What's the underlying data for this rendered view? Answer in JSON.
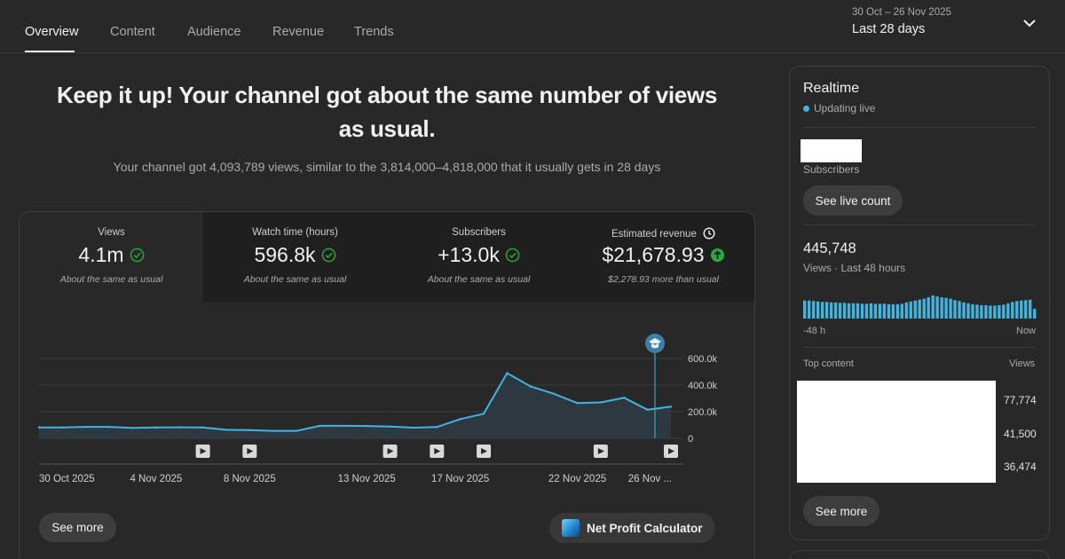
{
  "tabs": [
    {
      "label": "Overview",
      "active": true
    },
    {
      "label": "Content",
      "active": false
    },
    {
      "label": "Audience",
      "active": false
    },
    {
      "label": "Revenue",
      "active": false
    },
    {
      "label": "Trends",
      "active": false
    }
  ],
  "date_range": {
    "range": "30 Oct – 26 Nov 2025",
    "period": "Last 28 days"
  },
  "headline": {
    "line1": "Keep it up! Your channel got about the same number of views",
    "line2": "as usual.",
    "subline": "Your channel got 4,093,789 views, similar to the 3,814,000–4,818,000 that it usually gets in 28 days"
  },
  "metrics": [
    {
      "label": "Views",
      "value": "4.1m",
      "note": "About the same as usual",
      "status": "check"
    },
    {
      "label": "Watch time (hours)",
      "value": "596.8k",
      "note": "About the same as usual",
      "status": "check"
    },
    {
      "label": "Subscribers",
      "value": "+13.0k",
      "note": "About the same as usual",
      "status": "check"
    },
    {
      "label": "Estimated revenue",
      "value": "$21,678.93",
      "note": "$2,278.93 more than usual",
      "status": "up"
    }
  ],
  "chart_data": {
    "type": "area",
    "series": [
      {
        "values": [
          82000,
          82000,
          86000,
          86000,
          78000,
          82000,
          83000,
          82000,
          64000,
          62000,
          56000,
          56000,
          94000,
          94000,
          93000,
          88000,
          80000,
          85000,
          145000,
          185000,
          490000,
          390000,
          335000,
          265000,
          270000,
          305000,
          215000,
          238000
        ]
      }
    ],
    "y_ticks": [
      "600.0k",
      "400.0k",
      "200.0k",
      "0"
    ],
    "ylim": [
      0,
      600000
    ],
    "x_tick_labels": [
      {
        "index": 0,
        "label": "30 Oct 2025"
      },
      {
        "index": 5,
        "label": "4 Nov 2025"
      },
      {
        "index": 9,
        "label": "8 Nov 2025"
      },
      {
        "index": 14,
        "label": "13 Nov 2025"
      },
      {
        "index": 18,
        "label": "17 Nov 2025"
      },
      {
        "index": 23,
        "label": "22 Nov 2025"
      },
      {
        "index": 27,
        "label": "26 Nov ..."
      }
    ],
    "video_markers": [
      7,
      9,
      15,
      17,
      19,
      24,
      27
    ],
    "milestone_index": 27,
    "colors": {
      "line": "#41b4e0",
      "fill": "#2f3a42",
      "grid": "#3d3d3d",
      "marker": "#41b4e0"
    },
    "grid": true
  },
  "buttons": {
    "see_more": "See more",
    "net_profit": "Net Profit Calculator"
  },
  "realtime": {
    "title": "Realtime",
    "live_label": "Updating live",
    "subscribers_label": "Subscribers",
    "see_live_count": "See live count",
    "views_value": "445,748",
    "views_label": "Views · Last 48 hours",
    "bars": [
      0.78,
      0.78,
      0.76,
      0.74,
      0.72,
      0.72,
      0.7,
      0.7,
      0.68,
      0.68,
      0.66,
      0.66,
      0.66,
      0.64,
      0.64,
      0.66,
      0.64,
      0.64,
      0.64,
      0.62,
      0.62,
      0.62,
      0.64,
      0.7,
      0.74,
      0.78,
      0.82,
      0.86,
      0.92,
      1.0,
      0.96,
      0.92,
      0.9,
      0.86,
      0.8,
      0.76,
      0.7,
      0.66,
      0.62,
      0.6,
      0.58,
      0.58,
      0.56,
      0.56,
      0.58,
      0.6,
      0.66,
      0.72,
      0.76,
      0.78,
      0.8,
      0.82,
      0.42
    ],
    "axis_left": "-48 h",
    "axis_right": "Now",
    "top_content_label": "Top content",
    "views_col_label": "Views",
    "top_content_values": [
      "77,774",
      "41,500",
      "36,474"
    ],
    "see_more": "See more",
    "bar_color": "#41b4e0"
  }
}
